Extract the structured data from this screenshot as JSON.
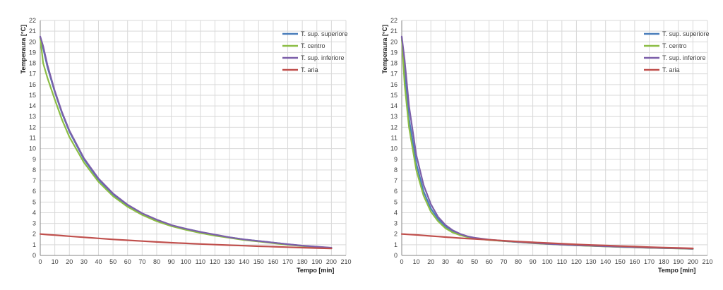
{
  "chart_data": [
    {
      "type": "line",
      "xlabel": "Tempo [min]",
      "ylabel": "Temperaura [°C]",
      "xlim": [
        0,
        210
      ],
      "ylim": [
        0,
        22
      ],
      "xticks": [
        "0",
        "10",
        "20",
        "30",
        "40",
        "50",
        "60",
        "70",
        "80",
        "90",
        "100",
        "110",
        "120",
        "130",
        "140",
        "150",
        "160",
        "170",
        "180",
        "190",
        "200",
        "210"
      ],
      "yticks": [
        "0",
        "1",
        "2",
        "3",
        "4",
        "5",
        "6",
        "7",
        "8",
        "9",
        "10",
        "11",
        "12",
        "13",
        "14",
        "15",
        "16",
        "17",
        "18",
        "19",
        "20",
        "21",
        "22"
      ],
      "grid": true,
      "legend_position": "top-right",
      "x": [
        0,
        2,
        5,
        10,
        15,
        20,
        30,
        40,
        50,
        60,
        70,
        80,
        90,
        100,
        110,
        120,
        130,
        140,
        150,
        160,
        170,
        180,
        190,
        200
      ],
      "series": [
        {
          "name": "T. sup. superiore",
          "color": "#4a7ebb",
          "values": [
            20.4,
            19.4,
            17.6,
            15.3,
            13.3,
            11.6,
            9.0,
            7.1,
            5.7,
            4.7,
            3.9,
            3.3,
            2.8,
            2.5,
            2.2,
            1.9,
            1.7,
            1.5,
            1.35,
            1.2,
            1.05,
            0.9,
            0.8,
            0.7
          ]
        },
        {
          "name": "T. centro",
          "color": "#8cbd45",
          "values": [
            20.4,
            18.0,
            16.6,
            14.6,
            12.7,
            11.1,
            8.7,
            6.9,
            5.55,
            4.55,
            3.8,
            3.2,
            2.75,
            2.4,
            2.1,
            1.85,
            1.65,
            1.45,
            1.3,
            1.15,
            1.0,
            0.88,
            0.78,
            0.68
          ]
        },
        {
          "name": "T. sup. inferiore",
          "color": "#7c5fa9",
          "values": [
            20.5,
            19.6,
            17.8,
            15.4,
            13.4,
            11.7,
            9.1,
            7.2,
            5.8,
            4.75,
            3.95,
            3.35,
            2.85,
            2.5,
            2.2,
            1.95,
            1.7,
            1.5,
            1.35,
            1.2,
            1.05,
            0.92,
            0.82,
            0.72
          ]
        },
        {
          "name": "T. aria",
          "color": "#c0504d",
          "values": [
            2.0,
            1.98,
            1.95,
            1.9,
            1.85,
            1.8,
            1.7,
            1.6,
            1.5,
            1.42,
            1.34,
            1.26,
            1.19,
            1.13,
            1.07,
            1.01,
            0.96,
            0.91,
            0.86,
            0.82,
            0.77,
            0.73,
            0.69,
            0.65
          ]
        }
      ]
    },
    {
      "type": "line",
      "xlabel": "Tempo [min]",
      "ylabel": "Temperaura [°C]",
      "xlim": [
        0,
        210
      ],
      "ylim": [
        0,
        22
      ],
      "xticks": [
        "0",
        "10",
        "20",
        "30",
        "40",
        "50",
        "60",
        "70",
        "80",
        "90",
        "100",
        "110",
        "120",
        "130",
        "140",
        "150",
        "160",
        "170",
        "180",
        "190",
        "200",
        "210"
      ],
      "yticks": [
        "0",
        "1",
        "2",
        "3",
        "4",
        "5",
        "6",
        "7",
        "8",
        "9",
        "10",
        "11",
        "12",
        "13",
        "14",
        "15",
        "16",
        "17",
        "18",
        "19",
        "20",
        "21",
        "22"
      ],
      "grid": true,
      "legend_position": "top-right",
      "x": [
        0,
        2,
        5,
        10,
        15,
        20,
        25,
        30,
        35,
        40,
        45,
        50,
        60,
        70,
        80,
        90,
        100,
        110,
        120,
        130,
        140,
        150,
        160,
        170,
        180,
        190,
        200
      ],
      "series": [
        {
          "name": "T. sup. superiore",
          "color": "#4a7ebb",
          "values": [
            20.4,
            17.0,
            12.8,
            8.6,
            6.0,
            4.4,
            3.4,
            2.7,
            2.25,
            1.95,
            1.75,
            1.62,
            1.46,
            1.35,
            1.25,
            1.16,
            1.08,
            1.01,
            0.95,
            0.9,
            0.85,
            0.8,
            0.76,
            0.72,
            0.69,
            0.66,
            0.62
          ]
        },
        {
          "name": "T. centro",
          "color": "#8cbd45",
          "values": [
            20.4,
            16.0,
            12.0,
            8.0,
            5.6,
            4.1,
            3.2,
            2.55,
            2.15,
            1.9,
            1.72,
            1.6,
            1.45,
            1.34,
            1.24,
            1.15,
            1.07,
            1.0,
            0.94,
            0.89,
            0.84,
            0.79,
            0.75,
            0.71,
            0.68,
            0.65,
            0.61
          ]
        },
        {
          "name": "T. sup. inferiore",
          "color": "#7c5fa9",
          "values": [
            20.5,
            18.3,
            14.0,
            9.4,
            6.6,
            4.8,
            3.6,
            2.85,
            2.35,
            2.02,
            1.8,
            1.65,
            1.48,
            1.36,
            1.26,
            1.17,
            1.09,
            1.02,
            0.96,
            0.91,
            0.86,
            0.81,
            0.77,
            0.73,
            0.7,
            0.67,
            0.63
          ]
        },
        {
          "name": "T. aria",
          "color": "#c0504d",
          "values": [
            2.0,
            1.99,
            1.96,
            1.92,
            1.87,
            1.82,
            1.77,
            1.72,
            1.67,
            1.62,
            1.58,
            1.54,
            1.46,
            1.38,
            1.3,
            1.23,
            1.16,
            1.1,
            1.04,
            0.98,
            0.93,
            0.88,
            0.83,
            0.78,
            0.74,
            0.7,
            0.66
          ]
        }
      ]
    }
  ]
}
